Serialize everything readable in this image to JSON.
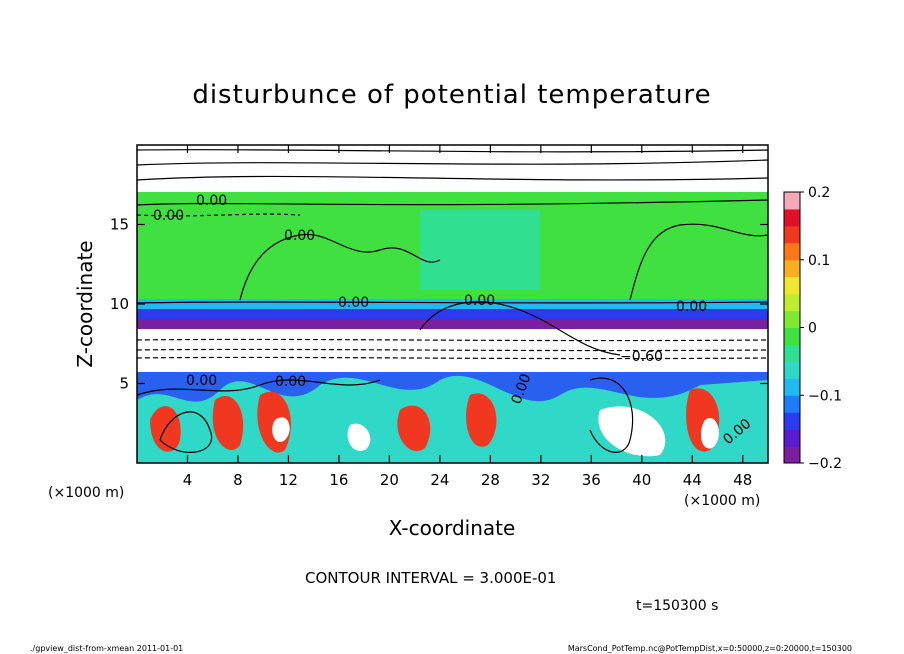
{
  "chart_data": {
    "type": "heatmap",
    "title": "disturbunce of potential temperature",
    "xlabel": "X-coordinate",
    "ylabel": "Z-coordinate",
    "xunit_left": "(×1000 m)",
    "xunit_right": "(×1000 m)",
    "xlim": [
      0,
      50
    ],
    "ylim": [
      0,
      20
    ],
    "xticks": [
      4,
      8,
      12,
      16,
      20,
      24,
      28,
      32,
      36,
      40,
      44,
      48
    ],
    "yticks": [
      5,
      10,
      15
    ],
    "colorbar": {
      "range": [
        -0.2,
        0.2
      ],
      "ticks": [
        "0.2",
        "0.1",
        "0",
        "−0.1",
        "−0.2"
      ],
      "colors": [
        "#7a1fa0",
        "#5a1ad0",
        "#2a3cf0",
        "#1f7cf8",
        "#22b8f0",
        "#30d8c8",
        "#30e090",
        "#40e040",
        "#80e830",
        "#c0ec30",
        "#f0e830",
        "#f8b020",
        "#f87818",
        "#f03820",
        "#e01028",
        "#f4a8b8"
      ]
    },
    "contour_labels": [
      "0.00",
      "0.00",
      "0.00",
      "0.00",
      "0.00",
      "0.00",
      "−0.60",
      "0.00",
      "0.00",
      "0.00",
      "0.00"
    ],
    "contour_interval": "CONTOUR INTERVAL = 3.000E-01",
    "time": "t=150300 s"
  },
  "footer": {
    "left": "./gpview_dist-from-xmean  2011-01-01",
    "right": "MarsCond_PotTemp.nc@PotTempDist,x=0:50000,z=0:20000,t=150300"
  }
}
